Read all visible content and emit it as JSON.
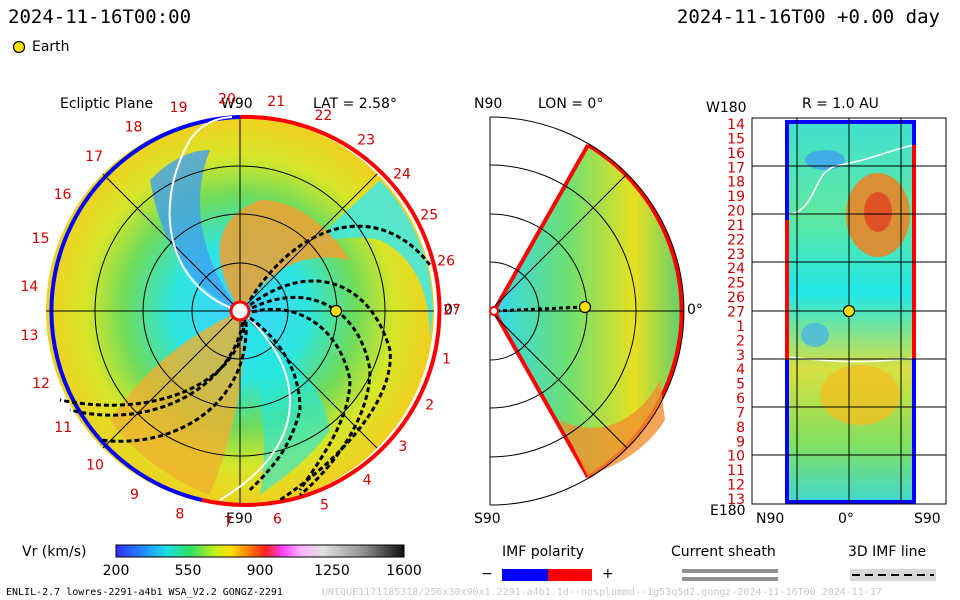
{
  "header": {
    "datetime_left": "2024-11-16T00:00",
    "datetime_right": "2024-11-16T00 +0.00 day",
    "earth_legend": "Earth"
  },
  "panels": {
    "ecliptic": {
      "title": "Ecliptic Plane",
      "w_label": "W90",
      "e_label": "E90",
      "lat": "LAT = 2.58°",
      "zero": "0°"
    },
    "meridional": {
      "n_label": "N90",
      "s_label": "S90",
      "lon": "LON = 0°",
      "zero": "0°"
    },
    "sphere": {
      "r_label": "R = 1.0 AU",
      "w_label": "W180",
      "e_label": "E180",
      "n_label": "N90",
      "zero": "0°",
      "s_label": "S90"
    }
  },
  "colorbar": {
    "label": "Vr (km/s)",
    "ticks": [
      "200",
      "550",
      "900",
      "1250",
      "1600"
    ]
  },
  "imf_polarity": {
    "label": "IMF polarity",
    "minus": "−",
    "plus": "+",
    "neg_color": "#0000ff",
    "pos_color": "#ff0000"
  },
  "current_sheath": {
    "label": "Current sheath"
  },
  "imf_line": {
    "label": "3D IMF line"
  },
  "footer": {
    "model_info": "ENLIL-2.7 lowres-2291-a4b1 WSA_V2.2 GONGZ-2291",
    "run_id": "UNIQUE1171185318/256x30x90x1.2291-a4b1.1d--nosplummd--1g53q5d2.gongz-2024-11-16T00 2024-11-17"
  },
  "chart_data": [
    {
      "type": "heatmap",
      "title": "Ecliptic Plane",
      "description_units": "Vr (km/s)",
      "carrington_ticks": [
        "20",
        "21",
        "22",
        "23",
        "24",
        "25",
        "26",
        "27",
        "1",
        "2",
        "3",
        "4",
        "5",
        "6",
        "7",
        "8",
        "9",
        "10",
        "11",
        "12",
        "13",
        "14",
        "15",
        "16",
        "17",
        "18",
        "19"
      ],
      "earth": {
        "r_au": 1.0,
        "angle_deg": 0
      },
      "colorbar_range": [
        200,
        1600
      ]
    },
    {
      "type": "heatmap",
      "title": "LON = 0°",
      "latitude_range": [
        -60,
        60
      ],
      "earth": {
        "r_au": 1.0,
        "lat_deg": 0
      },
      "colorbar_range": [
        200,
        1600
      ]
    },
    {
      "type": "heatmap",
      "title": "R = 1.0 AU",
      "y_ticks": [
        "14",
        "15",
        "16",
        "17",
        "18",
        "19",
        "20",
        "21",
        "22",
        "23",
        "24",
        "25",
        "26",
        "27",
        "1",
        "2",
        "3",
        "4",
        "5",
        "6",
        "7",
        "8",
        "9",
        "10",
        "11",
        "12",
        "13"
      ],
      "x_ticks": [
        "N90",
        "0°",
        "S90"
      ],
      "earth": {
        "lat_deg": 0,
        "carrington": "27"
      },
      "colorbar_range": [
        200,
        1600
      ]
    }
  ]
}
